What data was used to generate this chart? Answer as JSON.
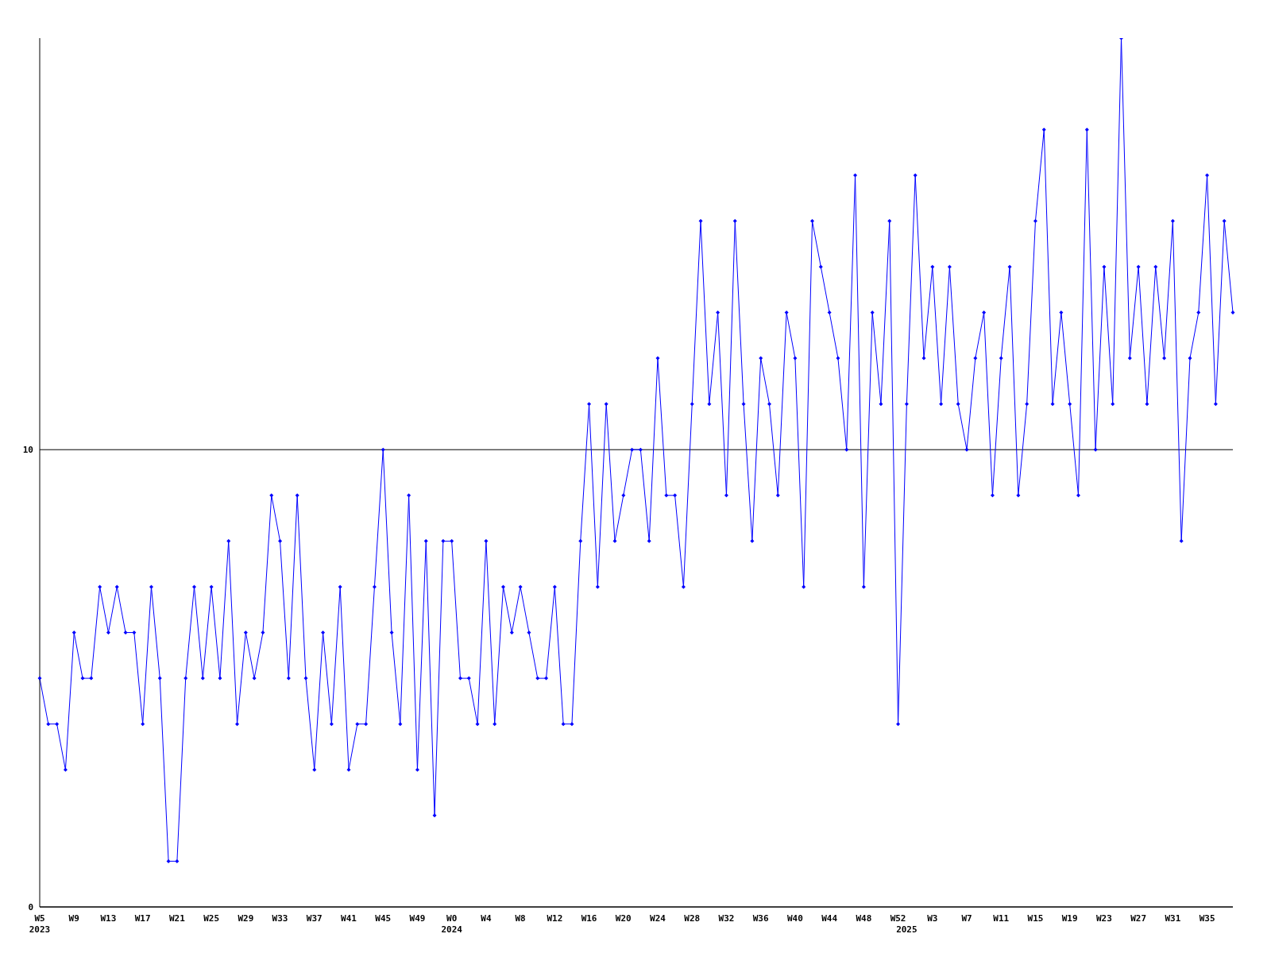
{
  "chart_data": {
    "type": "line",
    "categories": [
      "W5\n2023",
      null,
      null,
      null,
      "W9",
      null,
      null,
      null,
      "W13",
      null,
      null,
      null,
      "W17",
      null,
      null,
      null,
      "W21",
      null,
      null,
      null,
      "W25",
      null,
      null,
      null,
      "W29",
      null,
      null,
      null,
      "W33",
      null,
      null,
      null,
      "W37",
      null,
      null,
      null,
      "W41",
      null,
      null,
      null,
      "W45",
      null,
      null,
      null,
      "W49",
      null,
      null,
      null,
      "W0\n2024",
      null,
      null,
      null,
      "W4",
      null,
      null,
      null,
      "W8",
      null,
      null,
      null,
      "W12",
      null,
      null,
      null,
      "W16",
      null,
      null,
      null,
      "W20",
      null,
      null,
      null,
      "W24",
      null,
      null,
      null,
      "W28",
      null,
      null,
      null,
      "W32",
      null,
      null,
      null,
      "W36",
      null,
      null,
      null,
      "W40",
      null,
      null,
      null,
      "W44",
      null,
      null,
      null,
      "W48",
      null,
      null,
      null,
      "W52",
      "\n2025",
      null,
      null,
      "W3",
      null,
      null,
      null,
      "W7",
      null,
      null,
      null,
      "W11",
      null,
      null,
      null,
      "W15",
      null,
      null,
      null,
      "W19",
      null,
      null,
      null,
      "W23",
      null,
      null,
      null,
      "W27",
      null,
      null,
      null,
      "W31",
      null,
      null,
      null,
      "W35",
      null,
      null,
      null
    ],
    "series": [
      {
        "color": "#0000ff",
        "values": [
          5,
          4,
          4,
          3,
          6,
          5,
          5,
          7,
          6,
          7,
          6,
          6,
          4,
          7,
          5,
          1,
          1,
          5,
          7,
          5,
          7,
          5,
          8,
          4,
          6,
          5,
          6,
          9,
          8,
          5,
          9,
          5,
          3,
          6,
          4,
          7,
          3,
          4,
          4,
          7,
          10,
          6,
          4,
          9,
          3,
          8,
          2,
          8,
          8,
          5,
          5,
          4,
          8,
          4,
          7,
          6,
          7,
          6,
          5,
          5,
          7,
          4,
          4,
          8,
          11,
          7,
          11,
          8,
          9,
          10,
          10,
          8,
          12,
          9,
          9,
          7,
          11,
          15,
          11,
          13,
          9,
          15,
          11,
          8,
          12,
          11,
          9,
          13,
          12,
          7,
          15,
          14,
          13,
          12,
          10,
          16,
          7,
          13,
          11,
          15,
          4,
          11,
          16,
          12,
          14,
          11,
          14,
          11,
          10,
          12,
          13,
          9,
          12,
          14,
          9,
          11,
          15,
          17,
          11,
          13,
          11,
          9,
          17,
          10,
          14,
          11,
          19,
          12,
          14,
          11,
          14,
          12,
          15,
          8,
          12,
          13,
          16,
          11,
          15,
          13
        ]
      }
    ],
    "ylim": [
      0,
      19
    ],
    "yticks": [
      0,
      10
    ],
    "grid": "y",
    "legend": false,
    "marker": "diamond",
    "line_style": "solid"
  }
}
